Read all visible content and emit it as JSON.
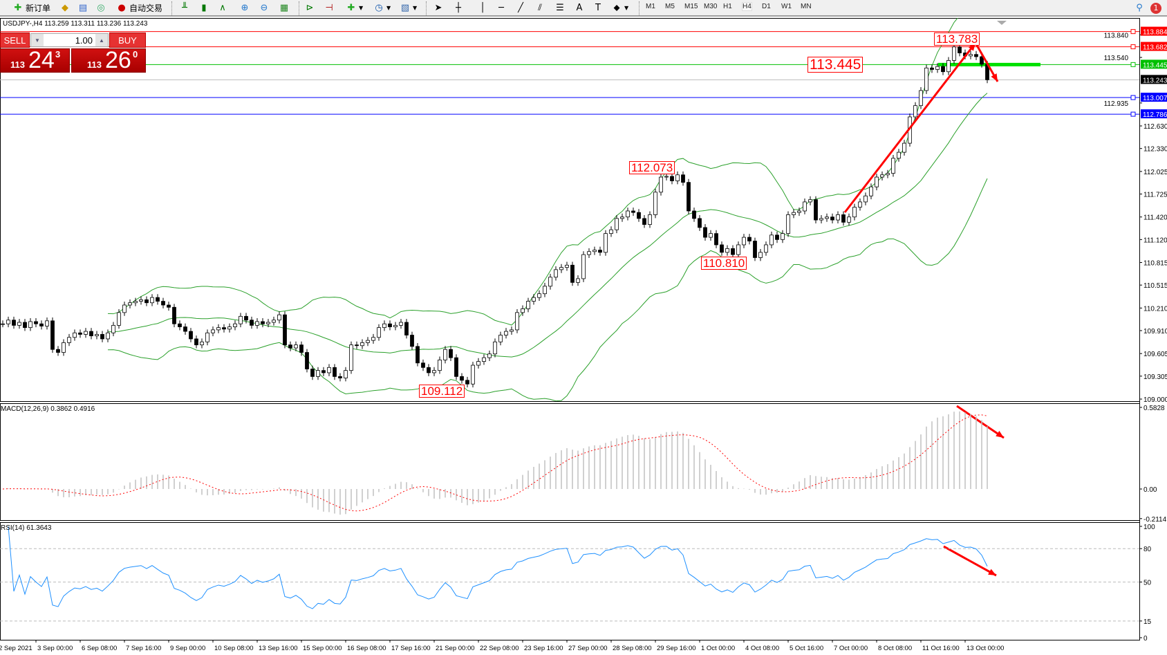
{
  "toolbar": {
    "new_order": "新订单",
    "auto_trading": "自动交易",
    "timeframes": [
      "M1",
      "M5",
      "M15",
      "M30",
      "H1",
      "H4",
      "D1",
      "W1",
      "MN"
    ],
    "active_timeframe": "H4",
    "icons": [
      "new-order-icon",
      "market-watch-icon",
      "navigator-icon",
      "signals-icon",
      "auto-trading-icon",
      "bar-chart-icon",
      "candlestick-icon",
      "line-chart-icon",
      "zoom-in-icon",
      "zoom-out-icon",
      "tile-windows-icon",
      "auto-scroll-icon",
      "chart-shift-icon",
      "indicators-icon",
      "periods-icon",
      "templates-icon",
      "cursor-icon",
      "crosshair-icon",
      "vertical-line-icon",
      "horizontal-line-icon",
      "trendline-icon",
      "equidistant-channel-icon",
      "fibonacci-icon",
      "text-icon",
      "text-label-icon",
      "arrows-icon",
      "search-icon",
      "notification-icon"
    ],
    "notification_count": "1"
  },
  "header": {
    "symbol": "USDJPY-,H4  113.259 113.311 113.236 113.243"
  },
  "trade_panel": {
    "sell": "SELL",
    "buy": "BUY",
    "lot": "1.00",
    "sell_price": {
      "prefix": "113",
      "main": "24",
      "pip": "3"
    },
    "buy_price": {
      "prefix": "113",
      "main": "26",
      "pip": "0"
    }
  },
  "colors": {
    "bull": "#ffffff",
    "bear": "#000000",
    "bands": "#2aa02a",
    "macd_hist": "#c0c0c0",
    "macd_signal": "#ff0000",
    "rsi": "#1e90ff",
    "annotation": "#ff0000"
  },
  "chart_data": [
    {
      "type": "candlestick",
      "symbol": "USDJPY-",
      "timeframe": "H4",
      "ylim": [
        109.0,
        113.95
      ],
      "y_ticks": [
        "113.840",
        "113.540",
        "112.935",
        "112.630",
        "112.330",
        "112.025",
        "111.725",
        "111.420",
        "111.120",
        "110.815",
        "110.515",
        "110.210",
        "109.910",
        "109.605",
        "109.305",
        "109.000"
      ],
      "x_labels": [
        "2 Sep 2021",
        "3 Sep 00:00",
        "6 Sep 08:00",
        "7 Sep 16:00",
        "9 Sep 00:00",
        "10 Sep 08:00",
        "13 Sep 16:00",
        "15 Sep 00:00",
        "16 Sep 08:00",
        "17 Sep 16:00",
        "21 Sep 00:00",
        "22 Sep 08:00",
        "23 Sep 16:00",
        "27 Sep 00:00",
        "28 Sep 08:00",
        "29 Sep 16:00",
        "1 Oct 00:00",
        "4 Oct 08:00",
        "5 Oct 16:00",
        "7 Oct 00:00",
        "8 Oct 08:00",
        "11 Oct 16:00",
        "13 Oct 00:00"
      ],
      "x_label_bars": [
        -1,
        6,
        14,
        22,
        30,
        38,
        46,
        54,
        62,
        70,
        78,
        86,
        94,
        102,
        110,
        118,
        126,
        134,
        142,
        150,
        158,
        166,
        174
      ],
      "closes": [
        110.0,
        110.05,
        109.98,
        110.02,
        109.95,
        110.03,
        110.0,
        109.97,
        110.04,
        109.66,
        109.62,
        109.75,
        109.82,
        109.88,
        109.86,
        109.9,
        109.84,
        109.86,
        109.8,
        109.88,
        109.98,
        110.15,
        110.25,
        110.28,
        110.3,
        110.32,
        110.28,
        110.35,
        110.3,
        110.25,
        110.22,
        110.0,
        109.96,
        109.9,
        109.8,
        109.72,
        109.76,
        109.88,
        109.92,
        109.95,
        109.93,
        109.96,
        110.0,
        110.1,
        110.05,
        109.98,
        110.03,
        110.0,
        110.02,
        110.05,
        110.12,
        109.72,
        109.68,
        109.72,
        109.62,
        109.4,
        109.3,
        109.38,
        109.35,
        109.42,
        109.3,
        109.28,
        109.38,
        109.72,
        109.71,
        109.75,
        109.78,
        109.82,
        109.95,
        110.0,
        109.96,
        109.98,
        110.02,
        109.85,
        109.7,
        109.48,
        109.42,
        109.35,
        109.38,
        109.52,
        109.66,
        109.55,
        109.3,
        109.25,
        109.2,
        109.45,
        109.5,
        109.55,
        109.6,
        109.76,
        109.85,
        109.9,
        109.92,
        110.15,
        110.2,
        110.3,
        110.35,
        110.4,
        110.5,
        110.62,
        110.72,
        110.75,
        110.78,
        110.55,
        110.6,
        110.92,
        110.96,
        110.98,
        110.95,
        111.2,
        111.25,
        111.4,
        111.42,
        111.5,
        111.48,
        111.4,
        111.32,
        111.45,
        111.75,
        111.95,
        111.96,
        111.9,
        111.98,
        111.88,
        111.5,
        111.4,
        111.28,
        111.15,
        111.2,
        111.05,
        110.95,
        111.0,
        110.92,
        111.05,
        111.15,
        111.1,
        110.88,
        110.95,
        111.05,
        111.18,
        111.12,
        111.2,
        111.45,
        111.48,
        111.5,
        111.62,
        111.65,
        111.38,
        111.4,
        111.42,
        111.38,
        111.45,
        111.35,
        111.42,
        111.55,
        111.62,
        111.7,
        111.82,
        111.95,
        111.98,
        112.0,
        112.2,
        112.28,
        112.4,
        112.75,
        112.9,
        113.1,
        113.4,
        113.38,
        113.42,
        113.35,
        113.5,
        113.68,
        113.6,
        113.56,
        113.58,
        113.55,
        113.45,
        113.243
      ],
      "bollinger": {
        "period": 20,
        "deviation": 2
      },
      "hlines": [
        {
          "price": 113.884,
          "label": "113.884",
          "color": "#ff0000"
        },
        {
          "price": 113.682,
          "label": "113.682",
          "color": "#ff0000"
        },
        {
          "price": 113.445,
          "label": "113.445",
          "color": "#00c000"
        },
        {
          "price": 113.243,
          "label": "113.243",
          "color": "#000000",
          "current": true
        },
        {
          "price": 113.007,
          "label": "113.007",
          "color": "#0000ff"
        },
        {
          "price": 112.786,
          "label": "112.786",
          "color": "#0000ff"
        }
      ],
      "annotations": [
        "113.783",
        "113.445",
        "112.073",
        "110.810",
        "109.112"
      ]
    },
    {
      "type": "macd",
      "title": "MACD(12,26,9) 0.3862 0.4916",
      "fast": 12,
      "slow": 26,
      "signal": 9,
      "ylim": [
        -0.2114,
        0.5828
      ],
      "y_ticks": [
        "0.5828",
        "0.00",
        "-0.2114"
      ]
    },
    {
      "type": "rsi",
      "title": "RSI(14) 61.3643",
      "period": 14,
      "ylim": [
        0,
        100
      ],
      "levels": [
        80,
        50,
        15
      ],
      "y_ticks": [
        "100",
        "80",
        "50",
        "15",
        "0"
      ]
    }
  ]
}
